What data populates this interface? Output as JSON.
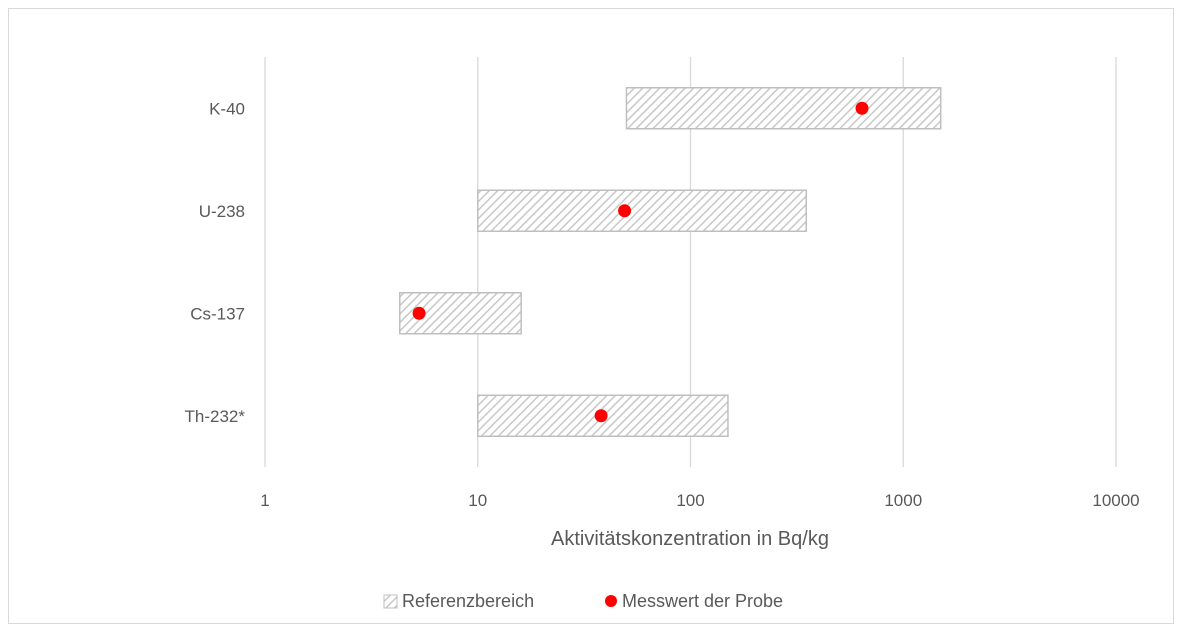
{
  "chart_data": {
    "type": "bar",
    "orientation": "horizontal",
    "x_scale": "log",
    "xlim": [
      1,
      10000
    ],
    "xticks": [
      "1",
      "10",
      "100",
      "1000",
      "10000"
    ],
    "xtick_values": [
      1,
      10,
      100,
      1000,
      10000
    ],
    "xlabel": "Aktivitätskonzentration in Bq/kg",
    "ylabel": "",
    "title": "",
    "grid": "vertical",
    "legend_position": "bottom",
    "categories": [
      "K-40",
      "U-238",
      "Cs-137",
      "Th-232*"
    ],
    "series": [
      {
        "name": "Referenzbereich",
        "kind": "range-bar",
        "color": "#d9d9d9",
        "ranges": [
          [
            50,
            1500
          ],
          [
            10,
            350
          ],
          [
            4.3,
            16
          ],
          [
            10,
            150
          ]
        ]
      },
      {
        "name": "Messwert der Probe",
        "kind": "point",
        "color": "#ff0000",
        "values": [
          640,
          49,
          5.3,
          38
        ]
      }
    ]
  }
}
